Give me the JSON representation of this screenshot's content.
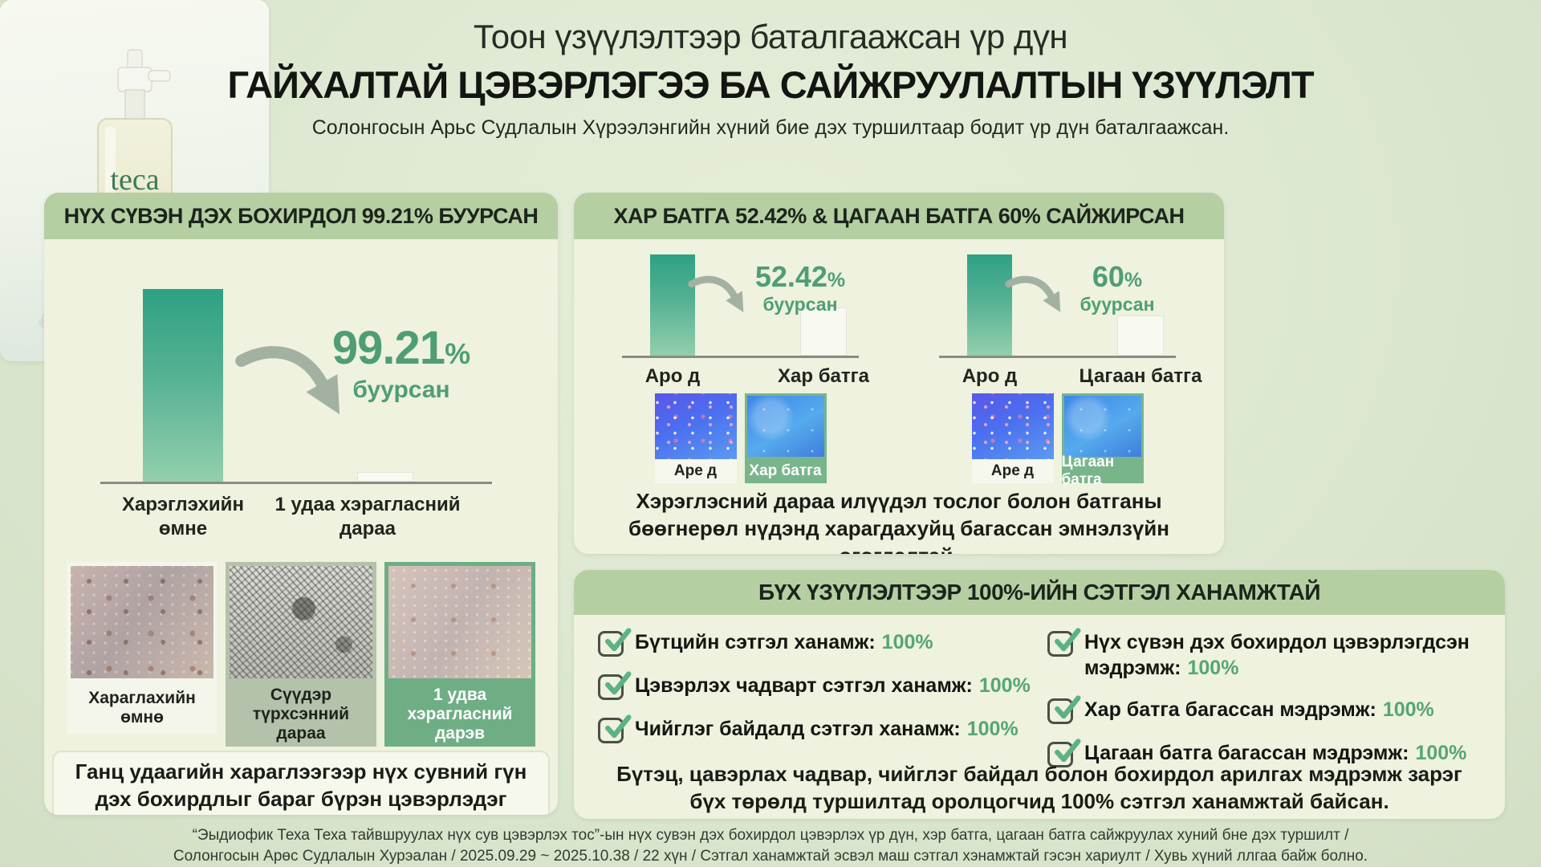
{
  "header": {
    "title": "Тоон үзүүлэлтээр баталгаажсан үр дүн",
    "headline": "ГАЙХАЛТАЙ ЦЭВЭРЛЭГЭЭ БА САЙЖРУУЛАЛТЫН ҮЗҮҮЛЭЛТ",
    "subtitle": "Солонгосын Арьс Судлалын Хүрээлэнгийн хүний бие дэх туршилтаар бодит үр дүн баталгаажсан."
  },
  "pore_panel": {
    "header": "НҮХ СҮВЭН ДЭХ БОХИРДОЛ 99.21% БУУРСАН",
    "stat_value": "99.21",
    "stat_unit": "%",
    "stat_caption": "буурсан",
    "label_before": "Харэглэхийн өмне",
    "label_after": "1 удаа хэрагласний дараа",
    "photos": [
      {
        "caption": "Хараглахийн өмнө"
      },
      {
        "caption": "Сүүдэр түрхсэнний дараа"
      },
      {
        "caption": "1 удва хэрагласний дарэв"
      }
    ],
    "note": "Ганц удаагийн хараглээгээр нүх сувний гүн дэх бохирдлыг бараг бүрэн цэвэрлэдэг болохыг тогтоосон."
  },
  "acne_panel": {
    "header": "ХАР БАТГА 52.42% & ЦАГААН БАТГА 60% САЙЖИРСАН",
    "groups": [
      {
        "stat_value": "52.42",
        "stat_unit": "%",
        "stat_caption": "буурсан",
        "bar_label_before": "Аро д",
        "bar_label_after": "Хар батга",
        "photo_before_caption": "Аре д",
        "photo_after_caption": "Хар батга"
      },
      {
        "stat_value": "60",
        "stat_unit": "%",
        "stat_caption": "буурсан",
        "bar_label_before": "Аро д",
        "bar_label_after": "Цагаан батга",
        "photo_before_caption": "Аре д",
        "photo_after_caption": "Цагаан батга"
      }
    ],
    "note": "Хэрэглэсний дараа илүүдэл тослог болон батганы бөөгнерөл нүдэнд харагдахуйц багассан эмнэлзүйн өгөгдэлтэй."
  },
  "satisfaction_panel": {
    "header": "БҮХ ҮЗҮҮЛЭЛТЭЭР 100%-ИЙН СЭТГЭЛ ХАНАМЖТАЙ",
    "items_left": [
      {
        "label": "Бүтцийн сэтгэл ханамж:",
        "value": "100%"
      },
      {
        "label": "Цэвэрлэх чадварт сэтгэл ханамж:",
        "value": "100%"
      },
      {
        "label": "Чийглэг байдалд сэтгэл ханамж:",
        "value": "100%"
      }
    ],
    "items_right": [
      {
        "label": "Нүх сүвэн дэх бохирдол цэвэрлэгдсэн мэдрэмж:",
        "value": "100%"
      },
      {
        "label": "Хар батга багассан мэдрэмж:",
        "value": "100%"
      },
      {
        "label": "Цагаан батга багассан мэдрэмж:",
        "value": "100%"
      }
    ],
    "note": "Бүтэц, цавэрлах чадвар, чийглэг байдал болон бохирдол арилгах мэдрэмж зарэг бүх төрөлд туршилтад оролцогчид 100% сэтгэл ханамжтай байсан."
  },
  "product": {
    "brand": "teca"
  },
  "footer": {
    "line1": "“Эыдиофик Теха Теха тайвшруулах нүх сув цэвэрлэх тос”-ын нүх сувэн дэх бохирдол цэвэрлэх үр дүн, хэр батга, цагаан батга сайжруулах хуний бне дэх туршилт /",
    "line2": "Солонгосын Арөс Судлалын Хурэалан / 2025.09.29 ~ 2025.10.38 / 22 хүн / Сэтгал ханамжтай эсвэл маш сэтгал хэнамжтай гэсэн хариулт / Хувь хүний ллгаа байж болно."
  },
  "colors": {
    "accent_green": "#4f9e73",
    "header_bar": "#b5cfa2",
    "bar_gradient_top": "#2ea183",
    "bar_gradient_bottom": "#93cfad"
  },
  "chart_data": [
    {
      "type": "bar",
      "title": "НҮХ СҮВЭН ДЭХ БОХИРДОЛ 99.21% БУУРСАН",
      "categories": [
        "Харэглэхийн өмне",
        "1 удаа хэрагласний дараа"
      ],
      "values": [
        100,
        0.79
      ],
      "annotation": "99.21% буурсан",
      "ylabel": "",
      "xlabel": "",
      "ylim": [
        0,
        100
      ],
      "grid": false,
      "legend": "none"
    },
    {
      "type": "bar",
      "title": "Хар батга",
      "categories": [
        "Аро д",
        "Хар батга"
      ],
      "values": [
        100,
        47.58
      ],
      "annotation": "52.42% буурсан",
      "ylabel": "",
      "xlabel": "",
      "ylim": [
        0,
        100
      ],
      "grid": false,
      "legend": "none"
    },
    {
      "type": "bar",
      "title": "Цагаан батга",
      "categories": [
        "Аро д",
        "Цагаан батга"
      ],
      "values": [
        100,
        40
      ],
      "annotation": "60% буурсан",
      "ylabel": "",
      "xlabel": "",
      "ylim": [
        0,
        100
      ],
      "grid": false,
      "legend": "none"
    }
  ]
}
